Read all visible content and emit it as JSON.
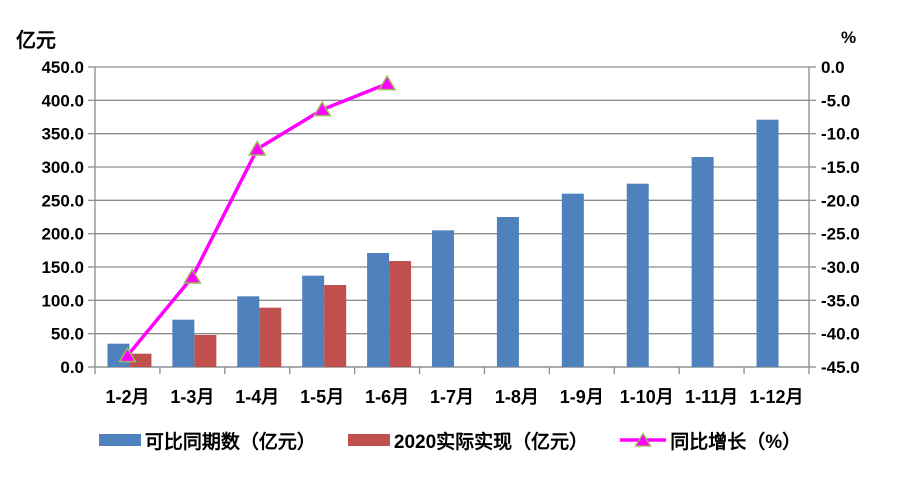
{
  "chart_data": {
    "type": "combo",
    "title": "",
    "categories": [
      "1-2月",
      "1-3月",
      "1-4月",
      "1-5月",
      "1-6月",
      "1-7月",
      "1-8月",
      "1-9月",
      "1-10月",
      "1-11月",
      "1-12月"
    ],
    "series": [
      {
        "type": "bar",
        "name": "可比同期数（亿元）",
        "color": "#4F81BD",
        "axis": "left",
        "values": [
          35,
          71,
          106,
          137,
          171,
          205,
          225,
          260,
          275,
          315,
          371
        ]
      },
      {
        "type": "bar",
        "name": "2020实际实现（亿元）",
        "color": "#C0504D",
        "axis": "left",
        "values": [
          20,
          48,
          89,
          123,
          159,
          null,
          null,
          null,
          null,
          null,
          null
        ]
      },
      {
        "type": "line",
        "name": "同比增长（%）",
        "color": "#FF00FF",
        "marker": "triangle",
        "marker_border": "#9BBB59",
        "axis": "right",
        "values": [
          -43.3,
          -31.5,
          -12.3,
          -6.4,
          -2.5,
          null,
          null,
          null,
          null,
          null,
          null
        ]
      }
    ],
    "left_axis": {
      "title": "亿元",
      "min": 0,
      "max": 450,
      "step": 50,
      "decimals": 1
    },
    "right_axis": {
      "title": "%",
      "min": -45,
      "max": 0,
      "step": 5,
      "decimals": 1
    },
    "grid": true,
    "legend_position": "bottom",
    "colors": {
      "grid": "#8C8C8C",
      "axis": "#8C8C8C",
      "text": "#000000",
      "background": "#FFFFFF"
    }
  }
}
